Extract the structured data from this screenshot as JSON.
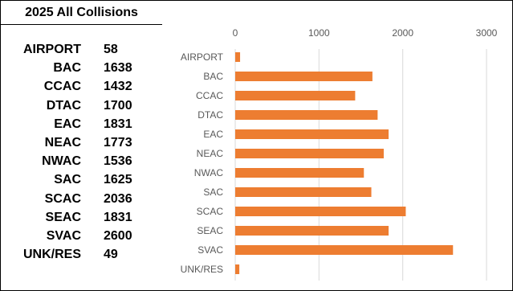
{
  "table": {
    "title": "2025 All Collisions",
    "rows": [
      {
        "name": "AIRPORT",
        "value": "58"
      },
      {
        "name": "BAC",
        "value": "1638"
      },
      {
        "name": "CCAC",
        "value": "1432"
      },
      {
        "name": "DTAC",
        "value": "1700"
      },
      {
        "name": "EAC",
        "value": "1831"
      },
      {
        "name": "NEAC",
        "value": "1773"
      },
      {
        "name": "NWAC",
        "value": "1536"
      },
      {
        "name": "SAC",
        "value": "1625"
      },
      {
        "name": "SCAC",
        "value": "2036"
      },
      {
        "name": "SEAC",
        "value": "1831"
      },
      {
        "name": "SVAC",
        "value": "2600"
      },
      {
        "name": "UNK/RES",
        "value": "49"
      }
    ]
  },
  "chart_data": {
    "type": "bar",
    "orientation": "horizontal",
    "title": "",
    "categories": [
      "AIRPORT",
      "BAC",
      "CCAC",
      "DTAC",
      "EAC",
      "NEAC",
      "NWAC",
      "SAC",
      "SCAC",
      "SEAC",
      "SVAC",
      "UNK/RES"
    ],
    "values": [
      58,
      1638,
      1432,
      1700,
      1831,
      1773,
      1536,
      1625,
      2036,
      1831,
      2600,
      49
    ],
    "xlim": [
      0,
      3000
    ],
    "xticks": [
      "0",
      "1000",
      "2000",
      "3000"
    ],
    "xaxis_position": "top",
    "grid": true,
    "legend": "none",
    "bar_color": "#ed7d31",
    "grid_color": "#d9d9d9",
    "label_color": "#595959"
  }
}
